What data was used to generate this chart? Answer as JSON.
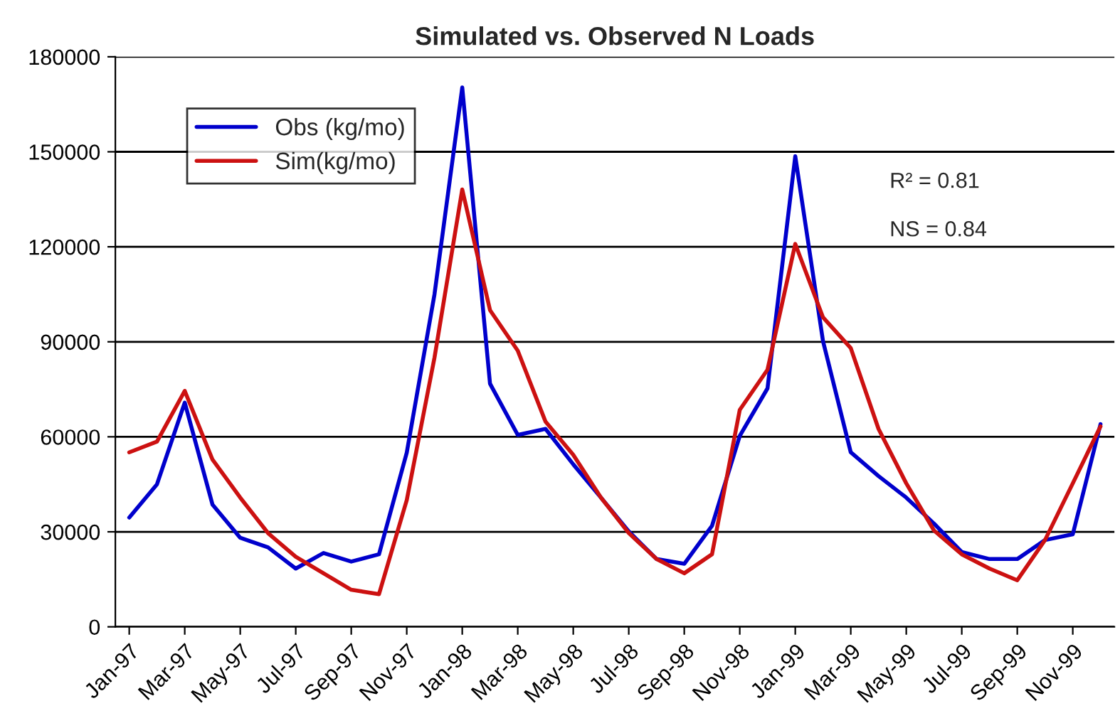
{
  "chart_data": {
    "type": "line",
    "title": "Simulated vs. Observed N Loads",
    "categories": [
      "Jan-97",
      null,
      "Mar-97",
      null,
      "May-97",
      null,
      "Jul-97",
      null,
      "Sep-97",
      null,
      "Nov-97",
      null,
      "Jan-98",
      null,
      "Mar-98",
      null,
      "May-98",
      null,
      "Jul-98",
      null,
      "Sep-98",
      null,
      "Nov-98",
      null,
      "Jan-99",
      null,
      "Mar-99",
      null,
      "May-99",
      null,
      "Jul-99",
      null,
      "Sep-99",
      null,
      "Nov-99",
      null
    ],
    "series": [
      {
        "name": "Obs (kg/mo)",
        "color": "#0000cc",
        "values": [
          34500,
          45000,
          70800,
          38600,
          28100,
          25100,
          18400,
          23300,
          20600,
          22900,
          55000,
          105000,
          170300,
          76800,
          60600,
          62500,
          51300,
          40800,
          30100,
          21400,
          19900,
          31900,
          60300,
          75300,
          148600,
          90200,
          55100,
          47600,
          40800,
          32600,
          23600,
          21400,
          21400,
          27400,
          29200,
          64000
        ]
      },
      {
        "name": "Sim(kg/mo)",
        "color": "#cc1111",
        "values": [
          55100,
          58500,
          74500,
          52800,
          40800,
          29600,
          22100,
          16900,
          11700,
          10300,
          40000,
          85000,
          138100,
          100000,
          87200,
          64800,
          54300,
          40800,
          29600,
          21400,
          16900,
          22900,
          68500,
          81200,
          120900,
          97700,
          88000,
          62500,
          45300,
          30400,
          22900,
          18400,
          14700,
          27400,
          45300,
          63300
        ]
      }
    ],
    "ylim": [
      0,
      180000
    ],
    "yticks": [
      0,
      30000,
      60000,
      90000,
      120000,
      150000,
      180000
    ],
    "grid": "y",
    "legend": "top left",
    "marker": "none",
    "line_style": "solid",
    "annotations": [
      "R² = 0.81",
      "NS = 0.84"
    ]
  }
}
